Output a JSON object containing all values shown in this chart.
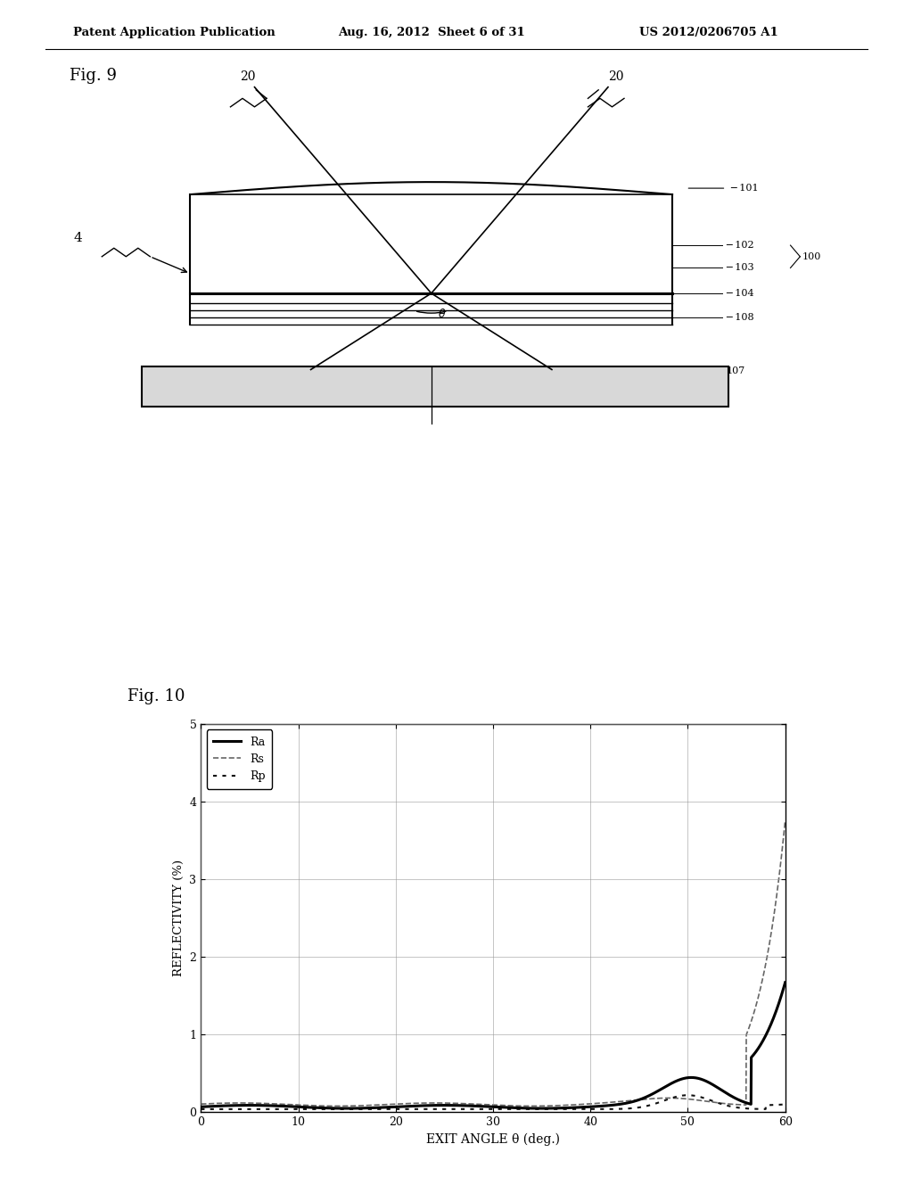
{
  "page_header_left": "Patent Application Publication",
  "page_header_mid": "Aug. 16, 2012  Sheet 6 of 31",
  "page_header_right": "US 2012/0206705 A1",
  "fig9_label": "Fig. 9",
  "fig10_label": "Fig. 10",
  "background_color": "#ffffff",
  "text_color": "#000000",
  "ylabel": "REFLECTIVITY (%)",
  "xlabel": "EXIT ANGLE θ (deg.)",
  "yticks": [
    0,
    1,
    2,
    3,
    4,
    5
  ],
  "xticks": [
    0,
    10,
    20,
    30,
    40,
    50,
    60
  ],
  "xlim": [
    0,
    60
  ],
  "ylim": [
    0,
    5
  ],
  "legend_Ra": "Ra",
  "legend_Rs": "Rs",
  "legend_Rp": "Rp"
}
